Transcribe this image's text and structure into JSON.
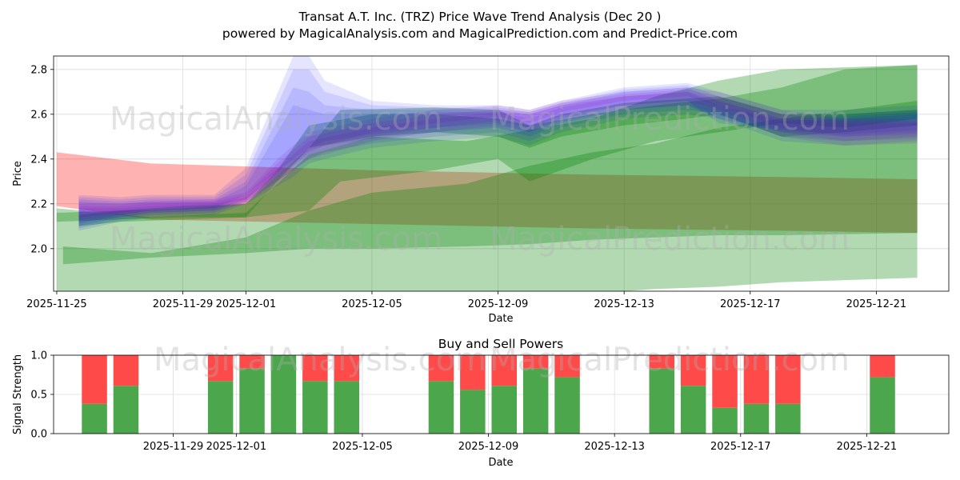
{
  "chart_data": [
    {
      "type": "area",
      "title": "Transat A.T. Inc. (TRZ) Price Wave Trend Analysis (Dec 20 )",
      "subtitle": "powered by MagicalAnalysis.com and MagicalPrediction.com and Predict-Price.com",
      "xlabel": "Date",
      "ylabel": "Price",
      "xlim": [
        "2025-11-24.9",
        "2025-12-23.3"
      ],
      "ylim": [
        1.81,
        2.86
      ],
      "x_ticks": [
        "2025-11-25",
        "2025-11-29",
        "2025-12-01",
        "2025-12-05",
        "2025-12-09",
        "2025-12-13",
        "2025-12-17",
        "2025-12-21"
      ],
      "y_ticks": [
        "2.0",
        "2.2",
        "2.4",
        "2.6",
        "2.8"
      ],
      "grid": true,
      "watermarks": [
        "MagicalAnalysis.com",
        "MagicalPrediction.com"
      ],
      "colors": {
        "red": "#ff0000",
        "green": "#008000",
        "blue": "#0000ff",
        "purple": "#8000c0",
        "grid": "#dcdcdc"
      },
      "bands": [
        {
          "color": "red",
          "opacity": 0.3,
          "x": [
            0,
            3,
            10,
            17,
            23,
            27.3
          ],
          "upper": [
            2.43,
            2.38,
            2.35,
            2.33,
            2.32,
            2.31
          ],
          "lower": [
            2.19,
            2.13,
            2.11,
            2.09,
            2.08,
            2.07
          ]
        },
        {
          "color": "green",
          "opacity": 0.3,
          "x": [
            0,
            3,
            6,
            8,
            10,
            13,
            17,
            19,
            21,
            23,
            27.3
          ],
          "upper": [
            2.18,
            2.14,
            2.16,
            2.42,
            2.5,
            2.48,
            2.58,
            2.68,
            2.75,
            2.8,
            2.82
          ],
          "lower": [
            1.8,
            1.81,
            1.81,
            1.81,
            1.8,
            1.8,
            1.8,
            1.82,
            1.83,
            1.85,
            1.87
          ]
        },
        {
          "color": "green",
          "opacity": 0.3,
          "x": [
            0.2,
            3,
            6,
            8,
            10,
            13,
            15,
            17,
            19,
            21,
            23,
            27.3
          ],
          "upper": [
            2.01,
            1.98,
            2.05,
            2.17,
            2.25,
            2.29,
            2.37,
            2.43,
            2.47,
            2.54,
            2.58,
            2.66
          ],
          "lower": [
            1.93,
            1.96,
            1.98,
            2.0,
            2.0,
            2.01,
            2.02,
            2.04,
            2.05,
            2.06,
            2.06,
            2.07
          ]
        },
        {
          "color": "green",
          "opacity": 0.3,
          "x": [
            0,
            2,
            4,
            6,
            8,
            9,
            12,
            14,
            15,
            17,
            19,
            21,
            23,
            25,
            27.3
          ],
          "upper": [
            2.16,
            2.17,
            2.19,
            2.2,
            2.45,
            2.62,
            2.63,
            2.62,
            2.55,
            2.6,
            2.64,
            2.67,
            2.72,
            2.8,
            2.82
          ],
          "lower": [
            2.12,
            2.13,
            2.14,
            2.14,
            2.17,
            2.3,
            2.35,
            2.4,
            2.3,
            2.4,
            2.48,
            2.52,
            2.56,
            2.54,
            2.58
          ]
        },
        {
          "color": "green",
          "opacity": 0.3,
          "x": [
            0.7,
            2,
            4,
            6,
            7,
            8,
            10,
            12,
            14,
            15,
            16,
            18,
            20,
            21,
            23,
            25,
            27.3
          ],
          "upper": [
            2.15,
            2.17,
            2.18,
            2.2,
            2.35,
            2.55,
            2.6,
            2.6,
            2.58,
            2.55,
            2.6,
            2.65,
            2.67,
            2.68,
            2.6,
            2.6,
            2.62
          ],
          "lower": [
            2.1,
            2.12,
            2.13,
            2.14,
            2.3,
            2.45,
            2.5,
            2.52,
            2.5,
            2.45,
            2.5,
            2.55,
            2.58,
            2.6,
            2.5,
            2.52,
            2.55
          ]
        },
        {
          "color": "blue",
          "opacity": 0.1,
          "x": [
            0.7,
            2,
            3,
            5,
            6,
            7.5,
            8,
            8.5,
            10,
            12,
            14,
            15,
            16,
            18,
            20,
            21,
            23,
            25,
            27.3
          ],
          "upper": [
            2.24,
            2.23,
            2.24,
            2.24,
            2.36,
            2.86,
            2.86,
            2.75,
            2.66,
            2.64,
            2.64,
            2.62,
            2.66,
            2.72,
            2.74,
            2.7,
            2.62,
            2.62,
            2.64
          ],
          "lower": [
            2.08,
            2.12,
            2.14,
            2.15,
            2.2,
            2.32,
            2.38,
            2.4,
            2.45,
            2.48,
            2.5,
            2.46,
            2.52,
            2.58,
            2.6,
            2.58,
            2.48,
            2.46,
            2.48
          ]
        },
        {
          "color": "blue",
          "opacity": 0.1,
          "x": [
            0.7,
            2,
            3,
            5,
            6,
            7.5,
            8,
            8.5,
            10,
            12,
            14,
            15,
            16,
            18,
            20,
            21,
            23,
            25,
            27.3
          ],
          "upper": [
            2.23,
            2.22,
            2.23,
            2.23,
            2.33,
            2.8,
            2.8,
            2.7,
            2.64,
            2.63,
            2.63,
            2.61,
            2.65,
            2.71,
            2.73,
            2.68,
            2.6,
            2.6,
            2.62
          ],
          "lower": [
            2.09,
            2.13,
            2.15,
            2.16,
            2.21,
            2.35,
            2.4,
            2.43,
            2.47,
            2.5,
            2.52,
            2.48,
            2.54,
            2.6,
            2.62,
            2.6,
            2.5,
            2.48,
            2.5
          ]
        },
        {
          "color": "blue",
          "opacity": 0.1,
          "x": [
            0.7,
            2,
            3,
            5,
            6,
            7.5,
            8,
            8.5,
            10,
            12,
            14,
            15,
            16,
            18,
            20,
            21,
            23,
            25,
            27.3
          ],
          "upper": [
            2.22,
            2.21,
            2.22,
            2.22,
            2.3,
            2.72,
            2.7,
            2.64,
            2.62,
            2.62,
            2.62,
            2.6,
            2.64,
            2.7,
            2.72,
            2.66,
            2.58,
            2.59,
            2.61
          ],
          "lower": [
            2.1,
            2.14,
            2.16,
            2.17,
            2.22,
            2.38,
            2.43,
            2.46,
            2.49,
            2.52,
            2.54,
            2.5,
            2.56,
            2.62,
            2.64,
            2.58,
            2.52,
            2.5,
            2.52
          ]
        },
        {
          "color": "blue",
          "opacity": 0.1,
          "x": [
            0.7,
            2,
            3,
            5,
            6,
            7.5,
            8,
            8.5,
            10,
            12,
            14,
            15,
            16,
            18,
            20,
            21,
            23,
            25,
            27.3
          ],
          "upper": [
            2.21,
            2.2,
            2.21,
            2.21,
            2.28,
            2.64,
            2.62,
            2.6,
            2.6,
            2.61,
            2.61,
            2.58,
            2.63,
            2.68,
            2.7,
            2.64,
            2.57,
            2.58,
            2.6
          ],
          "lower": [
            2.11,
            2.15,
            2.17,
            2.18,
            2.24,
            2.4,
            2.45,
            2.48,
            2.51,
            2.54,
            2.56,
            2.52,
            2.58,
            2.64,
            2.66,
            2.56,
            2.53,
            2.51,
            2.53
          ]
        },
        {
          "color": "purple",
          "opacity": 0.12,
          "x": [
            0.7,
            2,
            3,
            5,
            6,
            7,
            8,
            10,
            12,
            14,
            15,
            16,
            18,
            20,
            21,
            23,
            25,
            27.3
          ],
          "upper": [
            2.2,
            2.2,
            2.21,
            2.22,
            2.25,
            2.4,
            2.52,
            2.58,
            2.62,
            2.64,
            2.62,
            2.66,
            2.7,
            2.72,
            2.7,
            2.62,
            2.58,
            2.58
          ],
          "lower": [
            2.12,
            2.14,
            2.16,
            2.17,
            2.2,
            2.3,
            2.4,
            2.48,
            2.52,
            2.55,
            2.52,
            2.57,
            2.62,
            2.64,
            2.6,
            2.5,
            2.46,
            2.47
          ]
        },
        {
          "color": "purple",
          "opacity": 0.12,
          "x": [
            0.7,
            2,
            3,
            5,
            6,
            7,
            8,
            10,
            12,
            14,
            15,
            16,
            18,
            20,
            21,
            23,
            25,
            27.3
          ],
          "upper": [
            2.19,
            2.19,
            2.2,
            2.21,
            2.24,
            2.38,
            2.5,
            2.56,
            2.6,
            2.62,
            2.61,
            2.65,
            2.69,
            2.71,
            2.68,
            2.6,
            2.57,
            2.57
          ],
          "lower": [
            2.13,
            2.15,
            2.17,
            2.18,
            2.21,
            2.32,
            2.42,
            2.5,
            2.54,
            2.57,
            2.54,
            2.59,
            2.64,
            2.66,
            2.62,
            2.52,
            2.48,
            2.49
          ]
        },
        {
          "color": "purple",
          "opacity": 0.12,
          "x": [
            0.7,
            2,
            3,
            5,
            6,
            7,
            8,
            10,
            12,
            14,
            15,
            16,
            18,
            20,
            21,
            23,
            25,
            27.3
          ],
          "upper": [
            2.18,
            2.18,
            2.19,
            2.2,
            2.23,
            2.36,
            2.48,
            2.54,
            2.58,
            2.61,
            2.6,
            2.64,
            2.68,
            2.7,
            2.66,
            2.58,
            2.56,
            2.56
          ],
          "lower": [
            2.14,
            2.16,
            2.18,
            2.19,
            2.22,
            2.34,
            2.44,
            2.52,
            2.56,
            2.59,
            2.56,
            2.61,
            2.66,
            2.68,
            2.64,
            2.54,
            2.5,
            2.51
          ]
        }
      ]
    },
    {
      "type": "bar",
      "title": "Buy and Sell Powers",
      "xlabel": "Date",
      "ylabel": "Signal Strength",
      "ylim": [
        0,
        1
      ],
      "y_ticks": [
        "0.0",
        "0.5",
        "1.0"
      ],
      "x_ticks": [
        "2025-11-29",
        "2025-12-01",
        "2025-12-05",
        "2025-12-09",
        "2025-12-13",
        "2025-12-17",
        "2025-12-21"
      ],
      "colors": {
        "buy": "#4ca64c",
        "sell": "#ff4a4a"
      },
      "bars": [
        {
          "x": 1.5,
          "buy": 0.38
        },
        {
          "x": 2.5,
          "buy": 0.61
        },
        {
          "x": 5.5,
          "buy": 0.67
        },
        {
          "x": 6.5,
          "buy": 0.83
        },
        {
          "x": 7.5,
          "buy": 1.0
        },
        {
          "x": 8.5,
          "buy": 0.67
        },
        {
          "x": 9.5,
          "buy": 0.67
        },
        {
          "x": 12.5,
          "buy": 0.67
        },
        {
          "x": 13.5,
          "buy": 0.56
        },
        {
          "x": 14.5,
          "buy": 0.61
        },
        {
          "x": 15.5,
          "buy": 0.83
        },
        {
          "x": 16.5,
          "buy": 0.72
        },
        {
          "x": 19.5,
          "buy": 0.83
        },
        {
          "x": 20.5,
          "buy": 0.61
        },
        {
          "x": 21.5,
          "buy": 0.33
        },
        {
          "x": 22.5,
          "buy": 0.38
        },
        {
          "x": 23.5,
          "buy": 0.38
        },
        {
          "x": 26.5,
          "buy": 0.72
        }
      ]
    }
  ]
}
